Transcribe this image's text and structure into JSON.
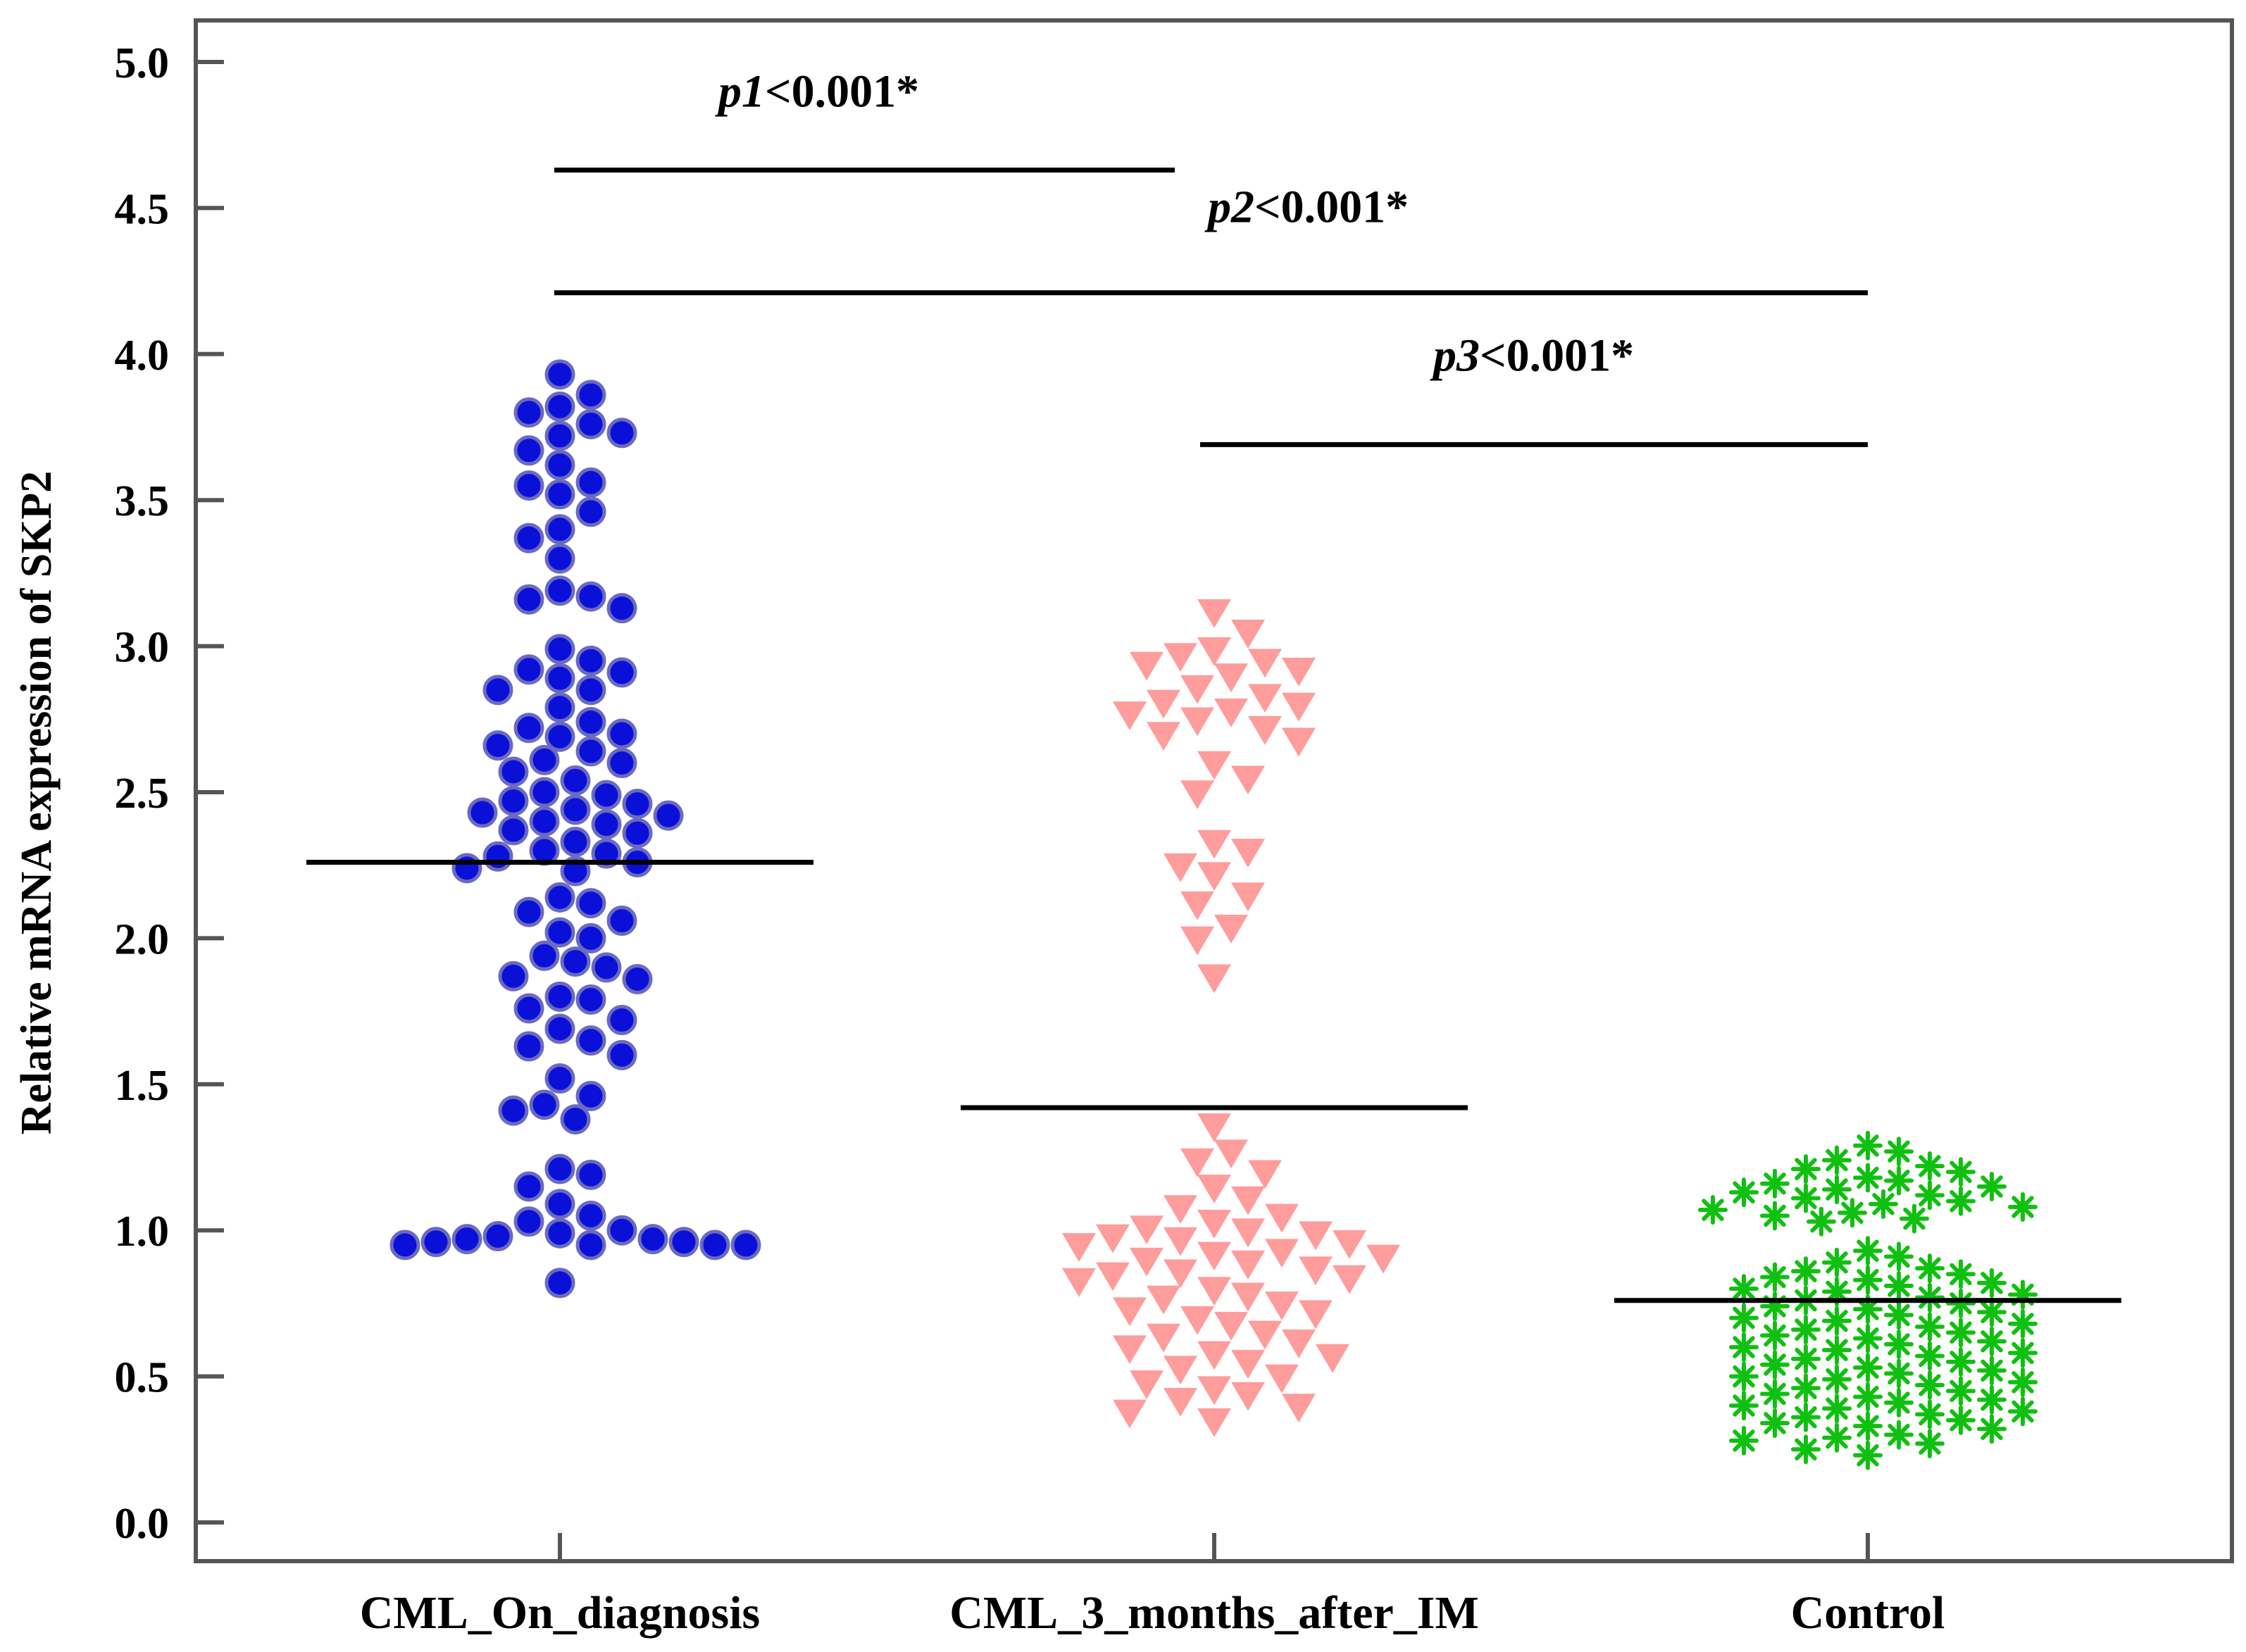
{
  "chart_data": {
    "type": "scatter",
    "subtype": "beeswarm",
    "title": "",
    "xlabel": "",
    "ylabel": "Relative mRNA expression of SKP2",
    "ylim": [
      0,
      5
    ],
    "yticks": [
      "0.0",
      "0.5",
      "1.0",
      "1.5",
      "2.0",
      "2.5",
      "3.0",
      "3.5",
      "4.0",
      "4.5",
      "5.0"
    ],
    "grid": false,
    "categories": [
      "CML_On_diagnosis",
      "CML_3_months_after_IM",
      "Control"
    ],
    "series": [
      {
        "name": "CML_On_diagnosis",
        "marker": "circle",
        "color": "#0a10d8",
        "edge_color": "#6a6ac0",
        "mean": 2.26,
        "values": [
          3.93,
          3.86,
          3.82,
          3.8,
          3.76,
          3.73,
          3.72,
          3.67,
          3.62,
          3.56,
          3.55,
          3.52,
          3.46,
          3.4,
          3.37,
          3.3,
          3.19,
          3.17,
          3.16,
          3.13,
          2.99,
          2.95,
          2.92,
          2.91,
          2.89,
          2.85,
          2.85,
          2.79,
          2.74,
          2.72,
          2.7,
          2.69,
          2.66,
          2.64,
          2.61,
          2.6,
          2.57,
          2.54,
          2.5,
          2.49,
          2.47,
          2.46,
          2.44,
          2.43,
          2.42,
          2.4,
          2.39,
          2.37,
          2.36,
          2.33,
          2.3,
          2.29,
          2.28,
          2.26,
          2.24,
          2.23,
          2.14,
          2.12,
          2.09,
          2.06,
          2.02,
          2.0,
          1.94,
          1.92,
          1.9,
          1.87,
          1.86,
          1.8,
          1.79,
          1.76,
          1.72,
          1.69,
          1.65,
          1.63,
          1.6,
          1.52,
          1.46,
          1.43,
          1.41,
          1.38,
          1.21,
          1.19,
          1.15,
          1.09,
          1.05,
          1.03,
          1.0,
          0.99,
          0.98,
          0.97,
          0.97,
          0.96,
          0.96,
          0.95,
          0.95,
          0.95,
          0.95,
          0.82
        ]
      },
      {
        "name": "CML_3_months_after_IM",
        "marker": "triangle-down",
        "color": "#ff9c9c",
        "mean": 1.42,
        "values": [
          3.12,
          3.05,
          2.99,
          2.97,
          2.95,
          2.94,
          2.92,
          2.9,
          2.86,
          2.83,
          2.81,
          2.8,
          2.78,
          2.77,
          2.75,
          2.72,
          2.7,
          2.68,
          2.6,
          2.55,
          2.5,
          2.33,
          2.3,
          2.25,
          2.22,
          2.15,
          2.12,
          2.04,
          2.0,
          1.87,
          1.36,
          1.27,
          1.24,
          1.2,
          1.15,
          1.11,
          1.08,
          1.05,
          1.03,
          1.01,
          1.0,
          0.99,
          0.98,
          0.97,
          0.96,
          0.95,
          0.93,
          0.92,
          0.91,
          0.9,
          0.89,
          0.87,
          0.86,
          0.85,
          0.84,
          0.83,
          0.8,
          0.78,
          0.77,
          0.75,
          0.73,
          0.72,
          0.7,
          0.68,
          0.65,
          0.64,
          0.62,
          0.6,
          0.58,
          0.57,
          0.55,
          0.53,
          0.5,
          0.48,
          0.46,
          0.44,
          0.42,
          0.4,
          0.38,
          0.35
        ]
      },
      {
        "name": "Control",
        "marker": "asterisk",
        "color": "#10c010",
        "mean": 0.76,
        "values": [
          1.29,
          1.27,
          1.24,
          1.22,
          1.21,
          1.2,
          1.18,
          1.17,
          1.16,
          1.15,
          1.14,
          1.13,
          1.12,
          1.11,
          1.1,
          1.09,
          1.08,
          1.07,
          1.06,
          1.05,
          1.04,
          1.03,
          0.93,
          0.91,
          0.89,
          0.87,
          0.86,
          0.85,
          0.84,
          0.83,
          0.82,
          0.81,
          0.8,
          0.79,
          0.78,
          0.77,
          0.76,
          0.75,
          0.74,
          0.73,
          0.72,
          0.71,
          0.7,
          0.69,
          0.68,
          0.67,
          0.66,
          0.65,
          0.64,
          0.63,
          0.62,
          0.61,
          0.6,
          0.59,
          0.58,
          0.57,
          0.56,
          0.55,
          0.54,
          0.53,
          0.52,
          0.51,
          0.5,
          0.49,
          0.48,
          0.47,
          0.46,
          0.45,
          0.44,
          0.43,
          0.42,
          0.41,
          0.4,
          0.39,
          0.38,
          0.37,
          0.36,
          0.35,
          0.34,
          0.33,
          0.32,
          0.3,
          0.29,
          0.28,
          0.27,
          0.25,
          0.23
        ]
      }
    ],
    "annotations": [
      {
        "id": "p1",
        "prefix": "p1",
        "text": "<0.001*",
        "from": "CML_On_diagnosis",
        "to": "CML_3_months_after_IM",
        "y": 4.63
      },
      {
        "id": "p2",
        "prefix": "p2",
        "text": "<0.001*",
        "from": "CML_On_diagnosis",
        "to": "Control",
        "y": 4.21
      },
      {
        "id": "p3",
        "prefix": "p3",
        "text": "<0.001*",
        "from": "CML_3_months_after_IM",
        "to": "Control",
        "y": 3.69
      }
    ]
  }
}
